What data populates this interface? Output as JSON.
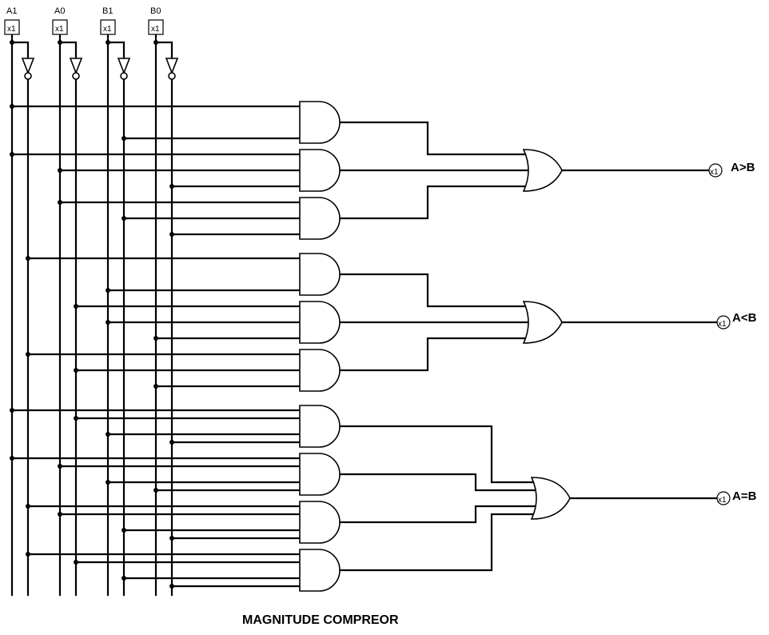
{
  "inputs": [
    {
      "name": "A1",
      "tag": "x1"
    },
    {
      "name": "A0",
      "tag": "x1"
    },
    {
      "name": "B1",
      "tag": "x1"
    },
    {
      "name": "B0",
      "tag": "x1"
    }
  ],
  "outputs": [
    {
      "name": "A>B",
      "tag": "x1"
    },
    {
      "name": "A<B",
      "tag": "x1"
    },
    {
      "name": "A=B",
      "tag": "x1"
    }
  ],
  "title": "MAGNITUDE COMPREOR"
}
